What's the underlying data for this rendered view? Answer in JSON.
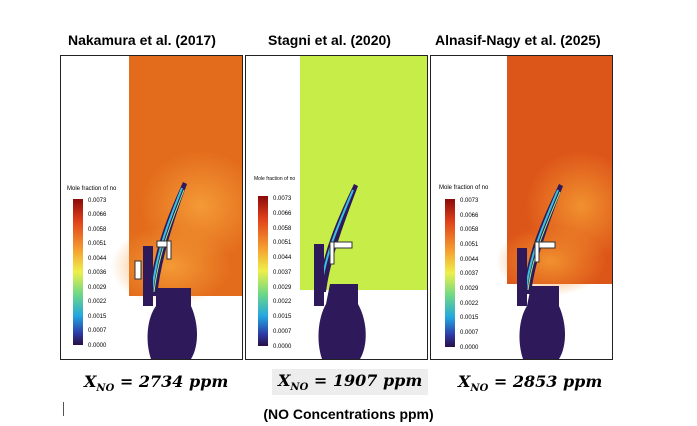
{
  "panels": [
    {
      "title": "Nakamura et al. (2017)",
      "colorbar_label": "Mole fraction of no",
      "ticks": [
        "0.0073",
        "0.0066",
        "0.0058",
        "0.0051",
        "0.0044",
        "0.0036",
        "0.0029",
        "0.0022",
        "0.0015",
        "0.0007",
        "0.0000"
      ],
      "concentration": "= 2734 ppm",
      "bg_color": "#e36c1c",
      "plume_color": "#f49a36"
    },
    {
      "title": "Stagni et al. (2020)",
      "colorbar_label": "Mole fraction of no",
      "ticks": [
        "0.0073",
        "0.0066",
        "0.0058",
        "0.0051",
        "0.0044",
        "0.0037",
        "0.0029",
        "0.0022",
        "0.0015",
        "0.0007",
        "0.0000"
      ],
      "concentration": "= 1907 ppm",
      "bg_color": "#c7ed49",
      "plume_color": "#c7ed49"
    },
    {
      "title": "Alnasif-Nagy et al. (2025)",
      "colorbar_label": "Mole fraction of no",
      "ticks": [
        "0.0073",
        "0.0066",
        "0.0058",
        "0.0051",
        "0.0044",
        "0.0037",
        "0.0029",
        "0.0022",
        "0.0015",
        "0.0007",
        "0.0000"
      ],
      "concentration": "= 2853 ppm",
      "bg_color": "#dd5619",
      "plume_color": "#f1912f"
    }
  ],
  "concentration_symbol": "X",
  "concentration_subscript": "NO",
  "caption": "(NO Concentrations ppm)"
}
